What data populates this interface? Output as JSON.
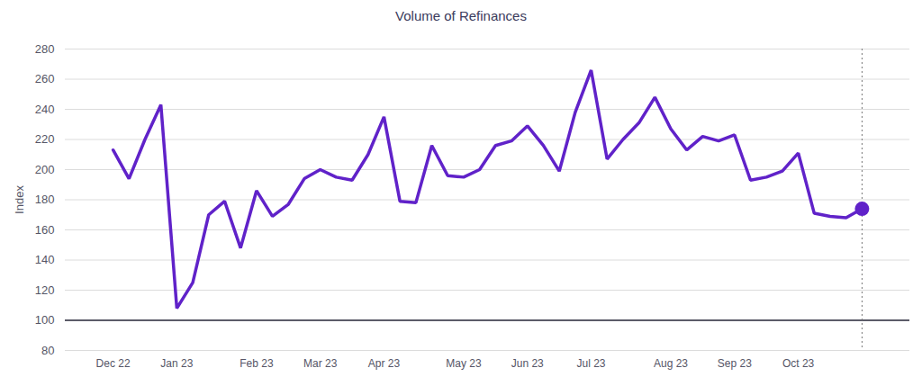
{
  "chart_data": {
    "type": "line",
    "title": "Volume of Refinances",
    "y_label": "Index",
    "categories": [
      "Dec 22",
      null,
      null,
      null,
      "Jan 23",
      null,
      null,
      null,
      null,
      "Feb 23",
      null,
      null,
      null,
      "Mar 23",
      null,
      null,
      null,
      "Apr 23",
      null,
      null,
      null,
      null,
      "May 23",
      null,
      null,
      null,
      "Jun 23",
      null,
      null,
      null,
      "Jul 23",
      null,
      null,
      null,
      null,
      "Aug 23",
      null,
      null,
      null,
      "Sep 23",
      null,
      null,
      null,
      "Oct 23",
      null,
      null,
      null,
      null
    ],
    "values": [
      213,
      194,
      220,
      243,
      108,
      125,
      170,
      179,
      148,
      186,
      169,
      177,
      194,
      200,
      195,
      193,
      210,
      235,
      179,
      178,
      216,
      196,
      195,
      200,
      216,
      219,
      229,
      216,
      199,
      238,
      266,
      207,
      220,
      231,
      248,
      227,
      213,
      222,
      219,
      223,
      193,
      195,
      199,
      211,
      171,
      169,
      168,
      174
    ],
    "color": "#6022c9",
    "ylim": [
      80,
      280
    ],
    "yticks": [
      80,
      100,
      120,
      140,
      160,
      180,
      200,
      220,
      240,
      260,
      280
    ],
    "grid": true,
    "baseline": 100
  }
}
